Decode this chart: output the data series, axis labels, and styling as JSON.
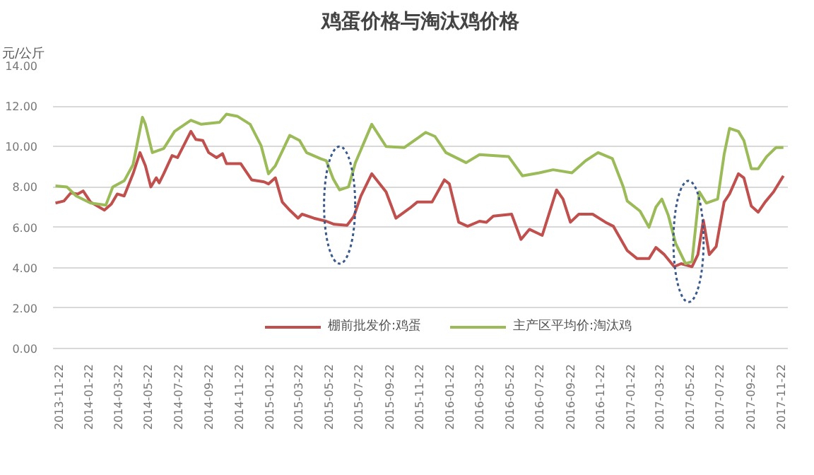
{
  "chart_data": {
    "type": "line",
    "title": "鸡蛋价格与淘汰鸡价格",
    "ylabel": "元/公斤",
    "xlim": [
      "2013-11-11",
      "2017-12-07"
    ],
    "xticks": [
      "2013-11-22",
      "2014-01-22",
      "2014-03-22",
      "2014-05-22",
      "2014-07-22",
      "2014-09-22",
      "2014-11-22",
      "2015-01-22",
      "2015-03-22",
      "2015-05-22",
      "2015-07-22",
      "2015-09-22",
      "2015-11-22",
      "2016-01-22",
      "2016-03-22",
      "2016-05-22",
      "2016-07-22",
      "2016-09-22",
      "2016-11-22",
      "2017-01-22",
      "2017-03-22",
      "2017-05-22",
      "2017-07-22",
      "2017-09-22",
      "2017-11-22"
    ],
    "ylim": [
      0,
      14
    ],
    "yticks": [
      {
        "value": 0,
        "label": "0.00"
      },
      {
        "value": 2,
        "label": "2.00"
      },
      {
        "value": 4,
        "label": "4.00"
      },
      {
        "value": 6,
        "label": "6.00"
      },
      {
        "value": 8,
        "label": "8.00"
      },
      {
        "value": 10,
        "label": "10.00"
      },
      {
        "value": 12,
        "label": "12.00"
      },
      {
        "value": 14,
        "label": "14.00"
      }
    ],
    "grid": "y",
    "legend": "bottom",
    "marker": "none",
    "line_style": "solid",
    "series": [
      {
        "name": "棚前批发价:鸡蛋",
        "color": "#c0504d",
        "x": [
          "2013-11-16",
          "2013-12-03",
          "2013-12-17",
          "2013-12-31",
          "2014-01-11",
          "2014-01-26",
          "2014-02-23",
          "2014-03-09",
          "2014-03-21",
          "2014-04-04",
          "2014-04-22",
          "2014-05-06",
          "2014-05-17",
          "2014-05-28",
          "2014-06-08",
          "2014-06-14",
          "2014-06-23",
          "2014-07-10",
          "2014-07-21",
          "2014-08-17",
          "2014-08-27",
          "2014-09-10",
          "2014-09-22",
          "2014-10-08",
          "2014-10-20",
          "2014-10-28",
          "2014-11-26",
          "2014-12-18",
          "2015-01-12",
          "2015-01-21",
          "2015-02-04",
          "2015-02-18",
          "2015-03-05",
          "2015-03-22",
          "2015-03-30",
          "2015-04-23",
          "2015-05-18",
          "2015-06-03",
          "2015-06-29",
          "2015-07-13",
          "2015-07-27",
          "2015-08-18",
          "2015-09-16",
          "2015-10-06",
          "2015-11-03",
          "2015-11-18",
          "2015-12-18",
          "2016-01-12",
          "2016-01-22",
          "2016-02-10",
          "2016-02-28",
          "2016-03-23",
          "2016-04-06",
          "2016-04-20",
          "2016-05-27",
          "2016-06-15",
          "2016-07-02",
          "2016-07-28",
          "2016-08-26",
          "2016-09-08",
          "2016-09-23",
          "2016-10-10",
          "2016-11-07",
          "2016-12-03",
          "2016-12-19",
          "2017-01-16",
          "2017-02-05",
          "2017-03-01",
          "2017-03-15",
          "2017-04-01",
          "2017-04-21",
          "2017-05-05",
          "2017-05-27",
          "2017-06-08",
          "2017-06-19",
          "2017-07-01",
          "2017-07-15",
          "2017-07-31",
          "2017-08-11",
          "2017-08-29",
          "2017-09-09",
          "2017-09-24",
          "2017-10-08",
          "2017-10-22",
          "2017-11-08",
          "2017-11-28"
        ],
        "values": [
          7.2,
          7.3,
          7.7,
          7.65,
          7.8,
          7.25,
          6.85,
          7.15,
          7.65,
          7.55,
          8.65,
          9.7,
          9.05,
          8.0,
          8.45,
          8.2,
          8.65,
          9.55,
          9.45,
          10.75,
          10.35,
          10.3,
          9.7,
          9.45,
          9.65,
          9.15,
          9.15,
          8.35,
          8.25,
          8.15,
          8.45,
          7.25,
          6.85,
          6.45,
          6.65,
          6.45,
          6.3,
          6.15,
          6.1,
          6.55,
          7.55,
          8.65,
          7.75,
          6.45,
          6.95,
          7.25,
          7.25,
          8.35,
          8.15,
          6.25,
          6.05,
          6.3,
          6.25,
          6.55,
          6.65,
          5.4,
          5.9,
          5.6,
          7.85,
          7.4,
          6.25,
          6.65,
          6.65,
          6.25,
          6.05,
          4.85,
          4.45,
          4.45,
          5.0,
          4.65,
          4.05,
          4.2,
          4.05,
          4.65,
          6.35,
          4.65,
          5.05,
          7.25,
          7.65,
          8.65,
          8.45,
          7.05,
          6.75,
          7.25,
          7.75,
          8.55
        ]
      },
      {
        "name": "主产区平均价:淘汰鸡",
        "color": "#9bbb59",
        "x": [
          "2013-11-16",
          "2013-12-09",
          "2013-12-28",
          "2014-01-26",
          "2014-02-26",
          "2014-03-12",
          "2014-04-04",
          "2014-04-22",
          "2014-05-11",
          "2014-05-17",
          "2014-05-31",
          "2014-06-23",
          "2014-07-15",
          "2014-08-17",
          "2014-09-07",
          "2014-10-14",
          "2014-10-28",
          "2014-11-19",
          "2014-12-15",
          "2015-01-06",
          "2015-01-21",
          "2015-02-04",
          "2015-03-05",
          "2015-03-25",
          "2015-04-08",
          "2015-05-06",
          "2015-05-18",
          "2015-06-01",
          "2015-06-14",
          "2015-07-02",
          "2015-07-16",
          "2015-08-18",
          "2015-09-16",
          "2015-10-23",
          "2015-11-18",
          "2015-12-05",
          "2015-12-24",
          "2016-01-15",
          "2016-02-25",
          "2016-03-23",
          "2016-05-21",
          "2016-06-18",
          "2016-07-22",
          "2016-08-19",
          "2016-09-26",
          "2016-10-24",
          "2016-11-18",
          "2016-12-17",
          "2017-01-08",
          "2017-01-16",
          "2017-02-11",
          "2017-03-01",
          "2017-03-15",
          "2017-03-27",
          "2017-04-09",
          "2017-04-24",
          "2017-05-14",
          "2017-05-27",
          "2017-06-11",
          "2017-06-25",
          "2017-07-18",
          "2017-07-31",
          "2017-08-11",
          "2017-08-29",
          "2017-09-09",
          "2017-09-24",
          "2017-10-08",
          "2017-10-25",
          "2017-11-13",
          "2017-11-28"
        ],
        "values": [
          8.05,
          8.0,
          7.55,
          7.2,
          7.1,
          8.0,
          8.3,
          9.1,
          11.45,
          11.1,
          9.7,
          9.9,
          10.75,
          11.3,
          11.1,
          11.2,
          11.6,
          11.5,
          11.1,
          10.05,
          8.65,
          9.05,
          10.55,
          10.3,
          9.7,
          9.4,
          9.3,
          8.4,
          7.85,
          8.0,
          9.2,
          11.1,
          10.0,
          9.95,
          10.4,
          10.7,
          10.5,
          9.7,
          9.2,
          9.6,
          9.5,
          8.55,
          8.7,
          8.85,
          8.7,
          9.3,
          9.7,
          9.4,
          8.0,
          7.3,
          6.8,
          6.0,
          7.0,
          7.4,
          6.6,
          5.2,
          4.2,
          4.3,
          7.75,
          7.2,
          7.4,
          9.6,
          10.9,
          10.75,
          10.3,
          8.9,
          8.9,
          9.5,
          9.95,
          9.95
        ]
      }
    ]
  }
}
